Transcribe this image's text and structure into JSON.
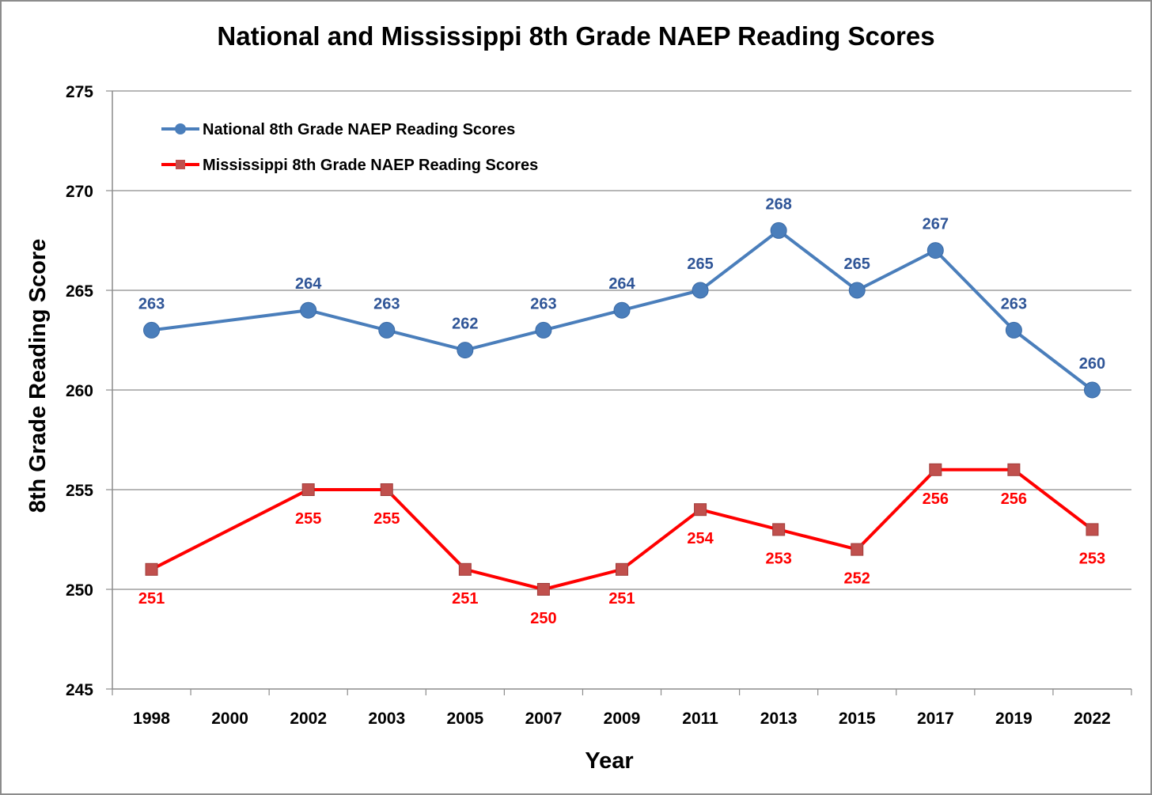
{
  "chart_data": {
    "type": "line",
    "title": "National and Mississippi 8th Grade NAEP Reading Scores",
    "xlabel": "Year",
    "ylabel": "8th Grade Reading Score",
    "categories": [
      "1998",
      "2000",
      "2002",
      "2003",
      "2005",
      "2007",
      "2009",
      "2011",
      "2013",
      "2015",
      "2017",
      "2019",
      "2022"
    ],
    "ylim": [
      245,
      275
    ],
    "yticks": [
      245,
      250,
      255,
      260,
      265,
      270,
      275
    ],
    "grid": true,
    "legend_position": "top-left",
    "series": [
      {
        "name": "National 8th Grade NAEP Reading Scores",
        "color": "#4a7ebb",
        "label_color": "#2f5597",
        "marker": "circle",
        "label_position": "above",
        "values": [
          263,
          null,
          264,
          263,
          262,
          263,
          264,
          265,
          268,
          265,
          267,
          263,
          260
        ]
      },
      {
        "name": "Mississippi 8th Grade NAEP Reading Scores",
        "color": "#ff0000",
        "marker_color": "#c0504d",
        "label_color": "#ff0000",
        "marker": "square",
        "label_position": "below",
        "values": [
          251,
          null,
          255,
          255,
          251,
          250,
          251,
          254,
          253,
          252,
          256,
          256,
          253
        ]
      }
    ]
  }
}
